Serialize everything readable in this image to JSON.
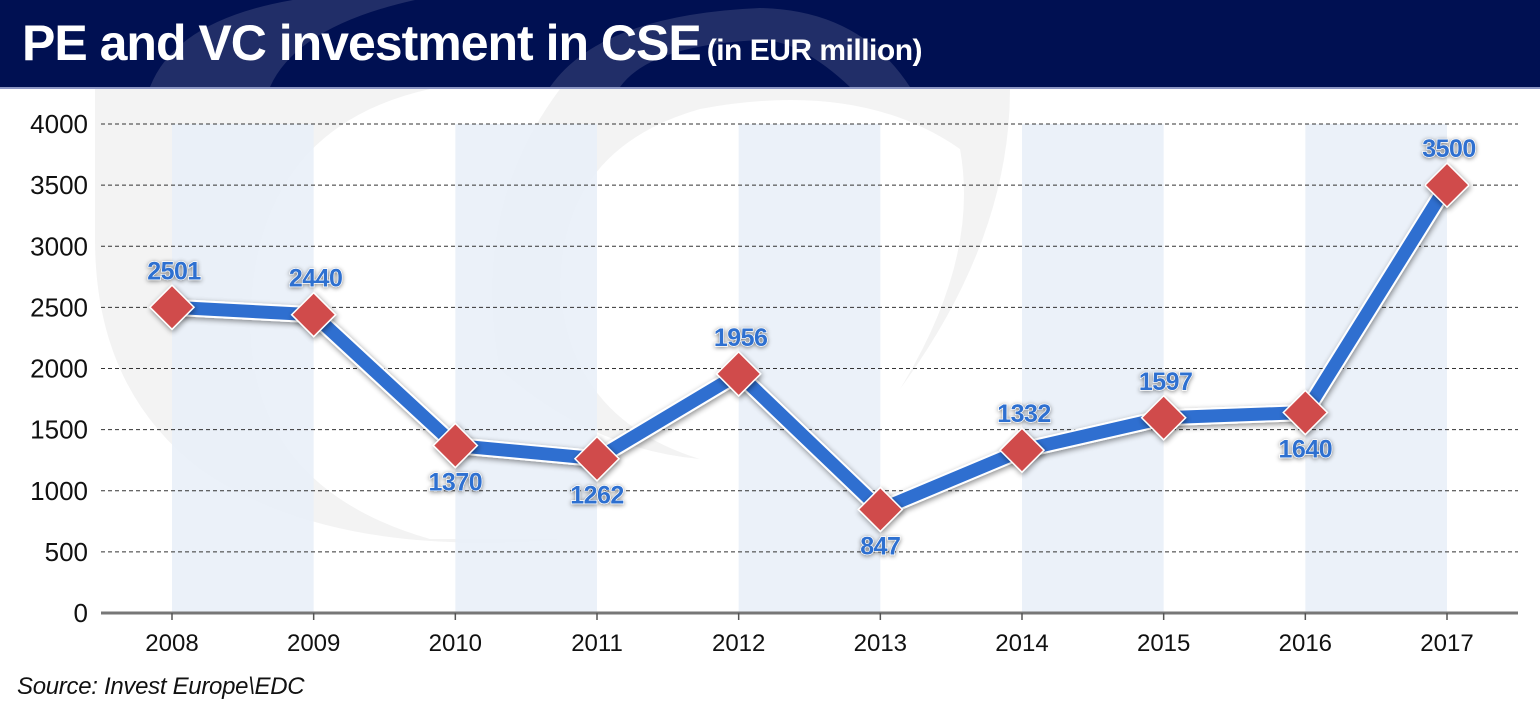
{
  "header": {
    "title": "PE and VC investment in CSE",
    "subtitle": "(in EUR million)"
  },
  "source": "Source: Invest Europe\\EDC",
  "colors": {
    "header_bg": "#001052",
    "line": "#2f6fd0",
    "marker": "#d04b4b",
    "band": "#e8eef8",
    "label": "#2f6fd0"
  },
  "chart_data": {
    "type": "line",
    "title": "PE and VC investment in CSE (in EUR million)",
    "xlabel": "",
    "ylabel": "",
    "categories": [
      "2008",
      "2009",
      "2010",
      "2011",
      "2012",
      "2013",
      "2014",
      "2015",
      "2016",
      "2017"
    ],
    "series": [
      {
        "name": "PE and VC investment",
        "values": [
          2501,
          2440,
          1370,
          1262,
          1956,
          847,
          1332,
          1597,
          1640,
          3500
        ],
        "labels": [
          "2501",
          "2440",
          "1370",
          "1262",
          "1956",
          "847",
          "1332",
          "1597",
          "1640",
          "3500"
        ],
        "label_positions": [
          "above",
          "above",
          "below",
          "below",
          "above",
          "below",
          "above",
          "above",
          "below",
          "above"
        ]
      }
    ],
    "ylim": [
      0,
      4000
    ],
    "yticks": [
      0,
      500,
      1000,
      1500,
      2000,
      2500,
      3000,
      3500,
      4000
    ],
    "ytick_labels": [
      "0",
      "500",
      "1000",
      "1500",
      "2000",
      "2500",
      "3000",
      "3500",
      "4000"
    ],
    "grid": true,
    "grid_style": "dashed-horizontal",
    "alternating_bands": true,
    "legend": "none"
  }
}
